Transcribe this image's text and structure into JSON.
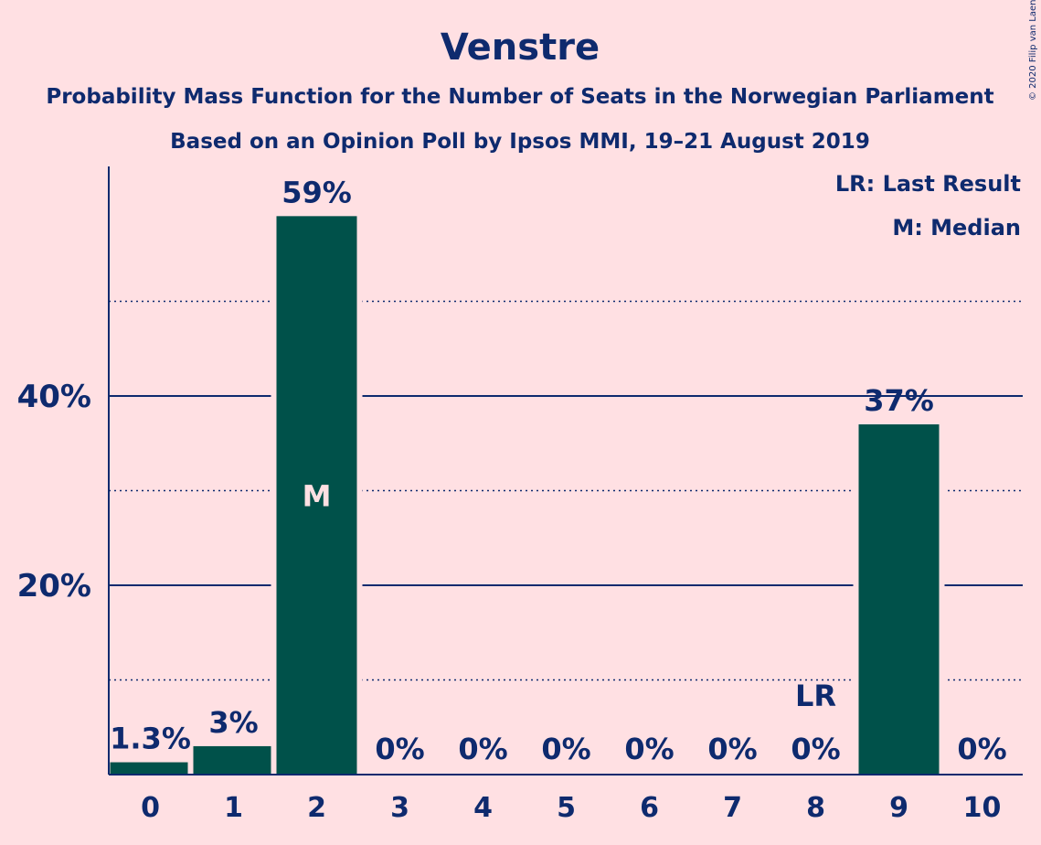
{
  "header": {
    "title": "Venstre",
    "subtitle1": "Probability Mass Function for the Number of Seats in the Norwegian Parliament",
    "subtitle2": "Based on an Opinion Poll by Ipsos MMI, 19–21 August 2019",
    "copyright": "© 2020 Filip van Laenen"
  },
  "legend": {
    "last_result": "LR: Last Result",
    "median": "M: Median"
  },
  "colors": {
    "background": "#ffe0e3",
    "bar": "#00514a",
    "text": "#0e2a6e"
  },
  "chart_data": {
    "type": "bar",
    "categories": [
      "0",
      "1",
      "2",
      "3",
      "4",
      "5",
      "6",
      "7",
      "8",
      "9",
      "10"
    ],
    "values": [
      1.3,
      3,
      59,
      0,
      0,
      0,
      0,
      0,
      0,
      37,
      0
    ],
    "labels": [
      "1.3%",
      "3%",
      "59%",
      "0%",
      "0%",
      "0%",
      "0%",
      "0%",
      "0%",
      "37%",
      "0%"
    ],
    "ylim": [
      0,
      64
    ],
    "yticks": [
      {
        "value": 20,
        "label": "20%"
      },
      {
        "value": 40,
        "label": "40%"
      }
    ],
    "minor_gridlines": [
      10,
      30,
      50
    ],
    "median_index": 2,
    "median_marker": "M",
    "last_result_index": 8,
    "last_result_marker": "LR",
    "grid": true,
    "legend_position": "top-right"
  }
}
